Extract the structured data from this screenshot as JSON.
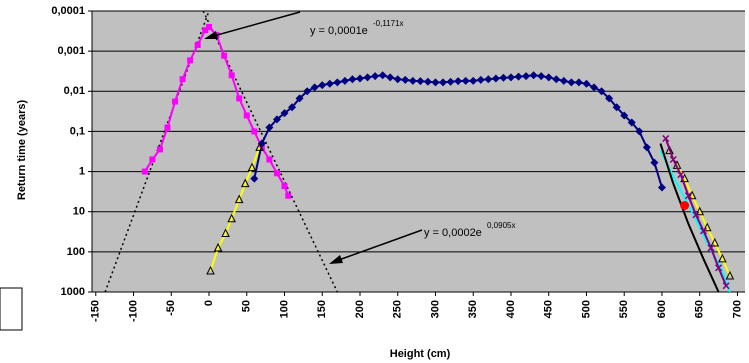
{
  "chart_data": {
    "type": "line",
    "y_label": "Return time (years)",
    "x_label": "Height (cm)",
    "annotations": [
      {
        "text": "y = 0,0001e",
        "exponent": "-0,1171x"
      },
      {
        "text": "y = 0,0002e",
        "exponent": "0,0905x"
      }
    ],
    "log_scale": true,
    "y_reversed": true,
    "grid": true,
    "background": "#c0c0c0",
    "xlim": [
      -155,
      710
    ],
    "xticks": [
      -150,
      -100,
      -50,
      0,
      50,
      100,
      150,
      200,
      250,
      300,
      350,
      400,
      450,
      500,
      550,
      600,
      650,
      700
    ],
    "ylim": [
      0.0001,
      1000
    ],
    "yticks": [
      {
        "value": 0.0001,
        "label": "0,0001"
      },
      {
        "value": 0.001,
        "label": "0,001"
      },
      {
        "value": 0.01,
        "label": "0,01"
      },
      {
        "value": 0.1,
        "label": "0,1"
      },
      1,
      10,
      100,
      1000
    ],
    "series": [
      {
        "color": "#000000",
        "marker": "none",
        "dash": "2,3",
        "x": [
          -137.6,
          0
        ],
        "values": [
          1000,
          0.0001
        ]
      },
      {
        "color": "#000000",
        "marker": "none",
        "dash": "2,3",
        "x": [
          -7.7,
          170
        ],
        "values": [
          0.0001,
          1000
        ]
      },
      {
        "color": "#ff00ff",
        "marker": "square",
        "x": [
          -85,
          -75,
          -65,
          -55,
          -45,
          -35,
          -25,
          -15,
          -5,
          0,
          10,
          20,
          30,
          40,
          50,
          60,
          70,
          80,
          90,
          100,
          105
        ],
        "values": [
          1,
          0.5,
          0.28,
          0.08,
          0.018,
          0.005,
          0.0017,
          0.0007,
          0.0003,
          0.00025,
          0.0004,
          0.0013,
          0.004,
          0.015,
          0.04,
          0.1,
          0.25,
          0.5,
          1.1,
          2.3,
          4
        ]
      },
      {
        "color": "#000080",
        "marker": "diamond",
        "x": [
          60,
          70,
          80,
          90,
          100,
          110,
          120,
          130,
          140,
          150,
          160,
          170,
          180,
          190,
          200,
          210,
          220,
          230,
          240,
          250,
          260,
          270,
          280,
          290,
          300,
          310,
          320,
          330,
          340,
          350,
          360,
          370,
          380,
          390,
          400,
          410,
          420,
          430,
          440,
          450,
          460,
          470,
          480,
          490,
          500,
          510,
          520,
          530,
          540,
          550,
          560,
          570,
          580,
          590,
          600
        ],
        "values": [
          1.5,
          0.2,
          0.08,
          0.05,
          0.035,
          0.025,
          0.015,
          0.01,
          0.008,
          0.007,
          0.0065,
          0.006,
          0.0055,
          0.005,
          0.0048,
          0.0045,
          0.0042,
          0.004,
          0.0045,
          0.005,
          0.0052,
          0.0055,
          0.0056,
          0.0058,
          0.006,
          0.006,
          0.0058,
          0.0056,
          0.0055,
          0.0055,
          0.0052,
          0.005,
          0.0048,
          0.0046,
          0.0045,
          0.0043,
          0.0042,
          0.004,
          0.0042,
          0.0045,
          0.005,
          0.0055,
          0.006,
          0.006,
          0.0065,
          0.008,
          0.01,
          0.015,
          0.025,
          0.04,
          0.06,
          0.1,
          0.25,
          0.6,
          2.5
        ]
      },
      {
        "color": "#00ffff",
        "marker": "none",
        "x": [
          598,
          620,
          640,
          660,
          680,
          690
        ],
        "values": [
          0.3,
          2,
          10,
          60,
          300,
          1000
        ]
      },
      {
        "color": "#000000",
        "marker": "none",
        "x": [
          598,
          615,
          635,
          655,
          675
        ],
        "values": [
          0.2,
          2,
          20,
          150,
          1000
        ]
      },
      {
        "color": "#ffff00",
        "marker": "triangle",
        "x": [
          2,
          12,
          22,
          30,
          40,
          48,
          57,
          67,
          null,
          610,
          620,
          630,
          640,
          650,
          660,
          670,
          680,
          690
        ],
        "values": [
          300,
          80,
          35,
          15,
          5,
          2,
          0.8,
          0.25,
          null,
          0.3,
          0.7,
          1.5,
          4,
          10,
          25,
          60,
          150,
          400
        ]
      },
      {
        "color": "#800080",
        "marker": "x",
        "x": [
          605,
          615,
          625,
          635,
          645,
          655,
          665,
          675,
          685
        ],
        "values": [
          0.15,
          0.5,
          1.2,
          4,
          12,
          30,
          80,
          250,
          700
        ]
      },
      {
        "color": "#ff0000",
        "marker": "circle",
        "x": [
          630
        ],
        "values": [
          7
        ]
      }
    ]
  }
}
